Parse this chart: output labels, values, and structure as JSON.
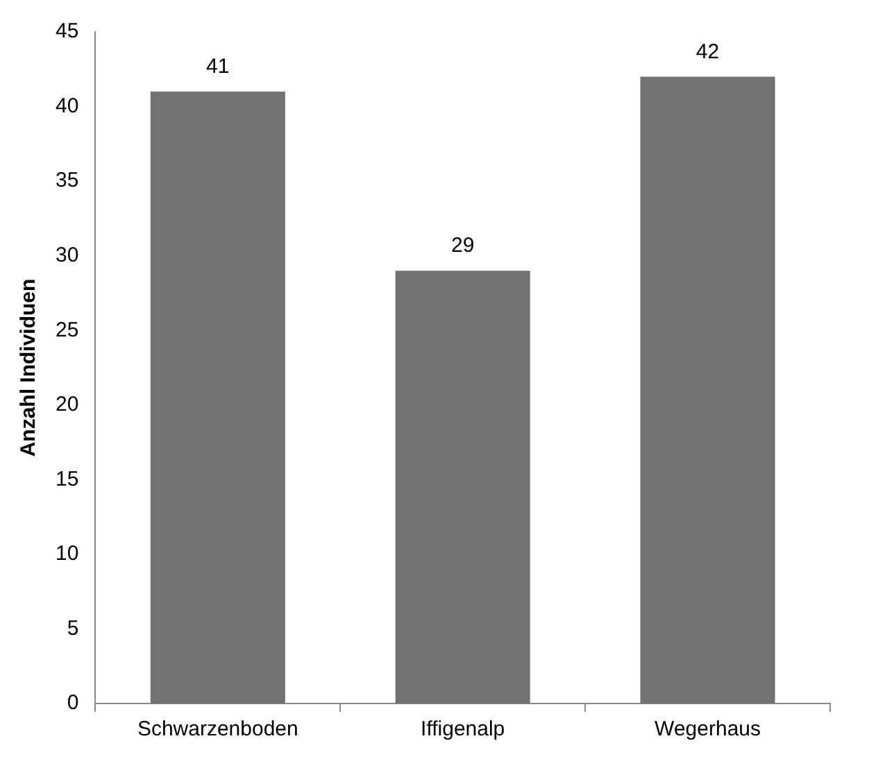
{
  "chart_data": {
    "type": "bar",
    "ylabel": "Anzahl Individuen",
    "categories": [
      "Schwarzenboden",
      "Iffigenalp",
      "Wegerhaus"
    ],
    "values": [
      41,
      29,
      42
    ],
    "color": "#727272",
    "ylim": [
      0,
      45
    ],
    "yticks": [
      0,
      5,
      10,
      15,
      20,
      25,
      30,
      35,
      40,
      45
    ],
    "grid": false,
    "legend": false,
    "data_labels": true
  }
}
